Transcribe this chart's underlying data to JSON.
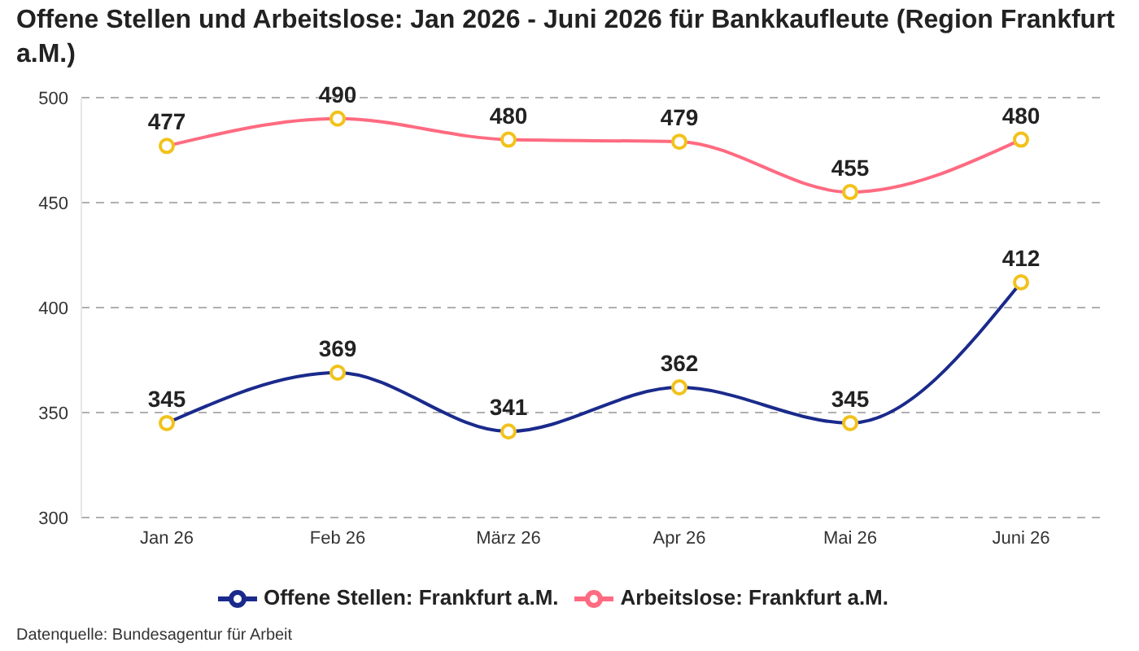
{
  "chart_data": {
    "type": "line",
    "title": "Offene Stellen und Arbeitslose: Jan 2026 - Juni 2026 für Bankkaufleute (Region Frankfurt a.M.)",
    "categories": [
      "Jan 26",
      "Feb 26",
      "März 26",
      "Apr 26",
      "Mai 26",
      "Juni 26"
    ],
    "series": [
      {
        "name": "Offene Stellen: Frankfurt a.M.",
        "color": "#1a2a8c",
        "values": [
          345,
          369,
          341,
          362,
          345,
          412
        ]
      },
      {
        "name": "Arbeitslose: Frankfurt a.M.",
        "color": "#ff6b81",
        "values": [
          477,
          490,
          480,
          479,
          455,
          480
        ]
      }
    ],
    "ylim": [
      300,
      500
    ],
    "yticks": [
      300,
      350,
      400,
      450,
      500
    ],
    "grid": "y",
    "legend": "bottom",
    "marker": "circle",
    "line_style": "solid",
    "data_labels": true,
    "annotations": [
      "Datenquelle: Bundesagentur für Arbeit"
    ]
  }
}
